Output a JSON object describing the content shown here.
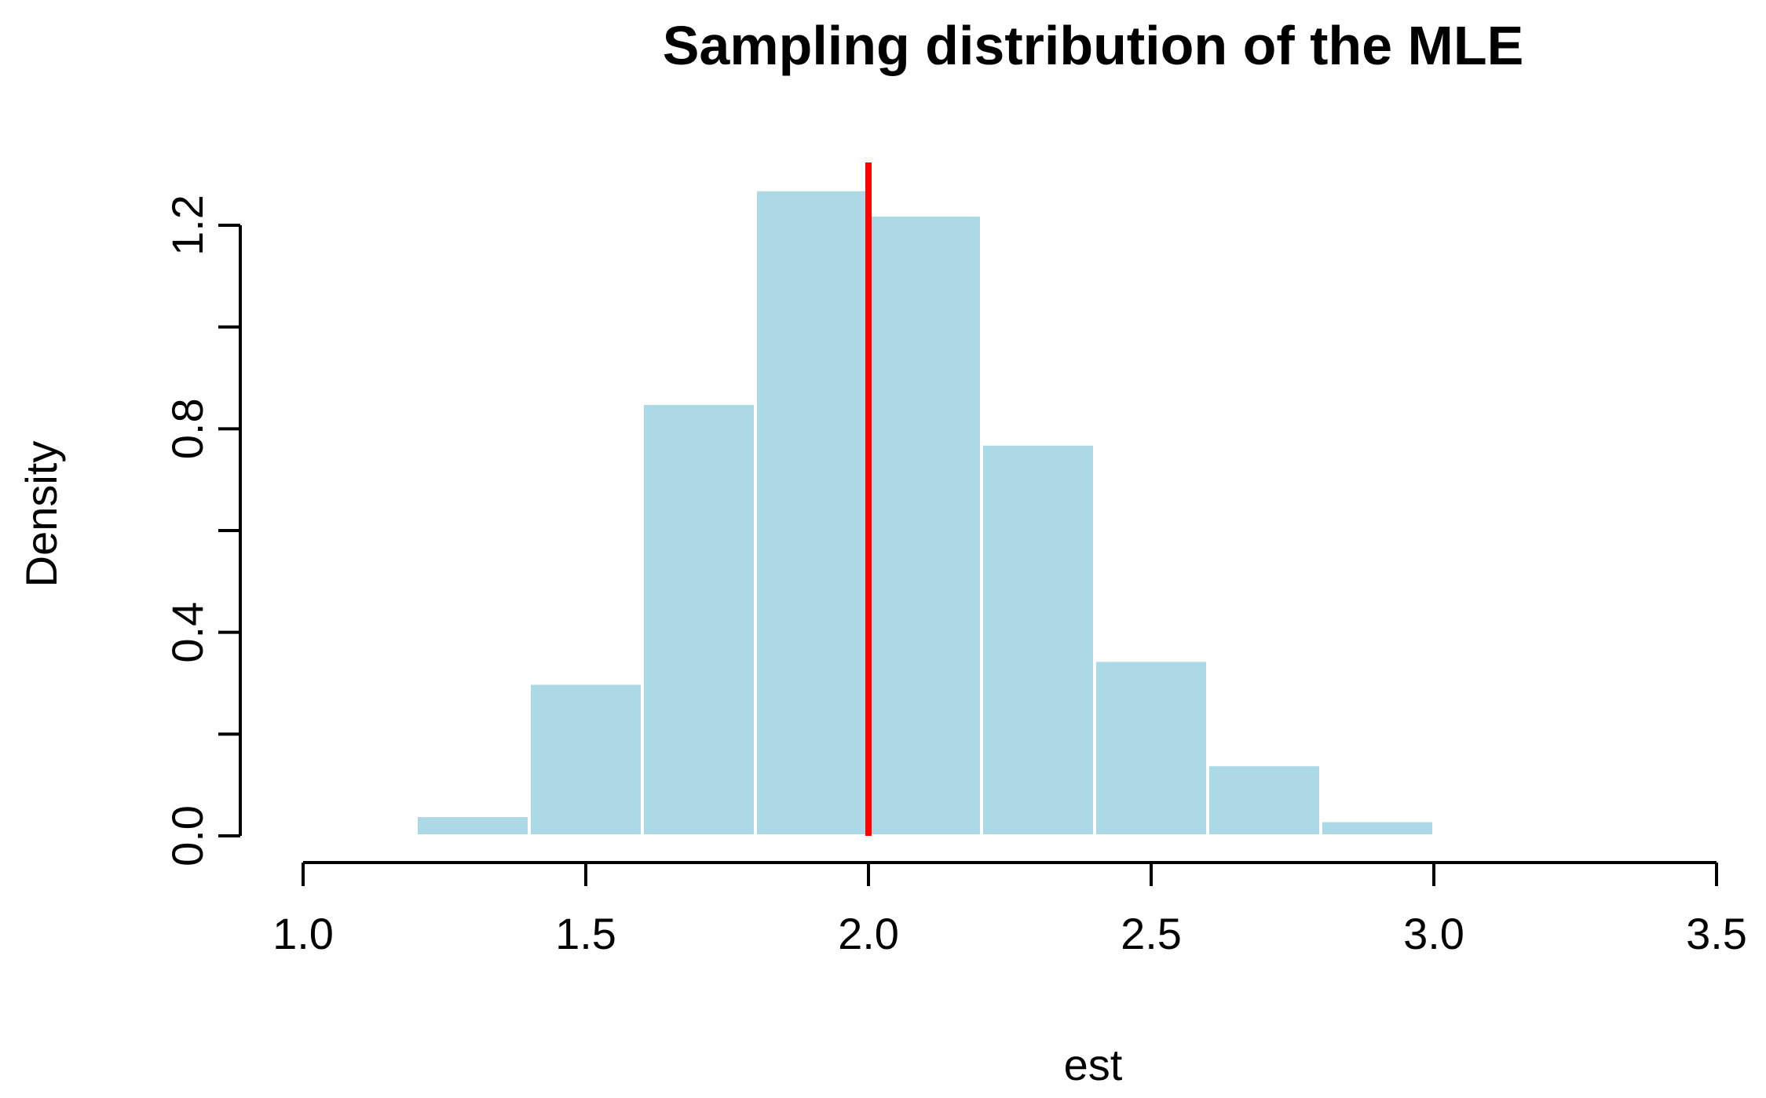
{
  "colors": {
    "bar_fill": "#ADD8E6",
    "bar_border": "#FFFFFF",
    "ref_line": "#FF0000",
    "axis": "#000000",
    "background": "#FFFFFF"
  },
  "chart_data": {
    "type": "bar",
    "title": "Sampling distribution of the MLE",
    "xlabel": "est",
    "ylabel": "Density",
    "xlim": [
      1.0,
      3.5
    ],
    "ylim": [
      0.0,
      1.3
    ],
    "x_ticks": [
      "1.0",
      "1.5",
      "2.0",
      "2.5",
      "3.0",
      "3.5"
    ],
    "y_ticks": [
      "0.0",
      "0.4",
      "0.8",
      "1.2"
    ],
    "x_tick_values": [
      1.0,
      1.5,
      2.0,
      2.5,
      3.0,
      3.5
    ],
    "y_tick_values": [
      0.0,
      0.4,
      0.8,
      1.2
    ],
    "y_minor_ticks": [
      0.2,
      0.6,
      1.0
    ],
    "bins": [
      {
        "start": 1.2,
        "end": 1.4,
        "density": 0.04
      },
      {
        "start": 1.4,
        "end": 1.6,
        "density": 0.3
      },
      {
        "start": 1.6,
        "end": 1.8,
        "density": 0.85
      },
      {
        "start": 1.8,
        "end": 2.0,
        "density": 1.27
      },
      {
        "start": 2.0,
        "end": 2.2,
        "density": 1.22
      },
      {
        "start": 2.2,
        "end": 2.4,
        "density": 0.77
      },
      {
        "start": 2.4,
        "end": 2.6,
        "density": 0.345
      },
      {
        "start": 2.6,
        "end": 2.8,
        "density": 0.14
      },
      {
        "start": 2.8,
        "end": 3.0,
        "density": 0.03
      }
    ],
    "reference_line": {
      "x": 2.0
    },
    "grid": false,
    "legend": "none"
  }
}
